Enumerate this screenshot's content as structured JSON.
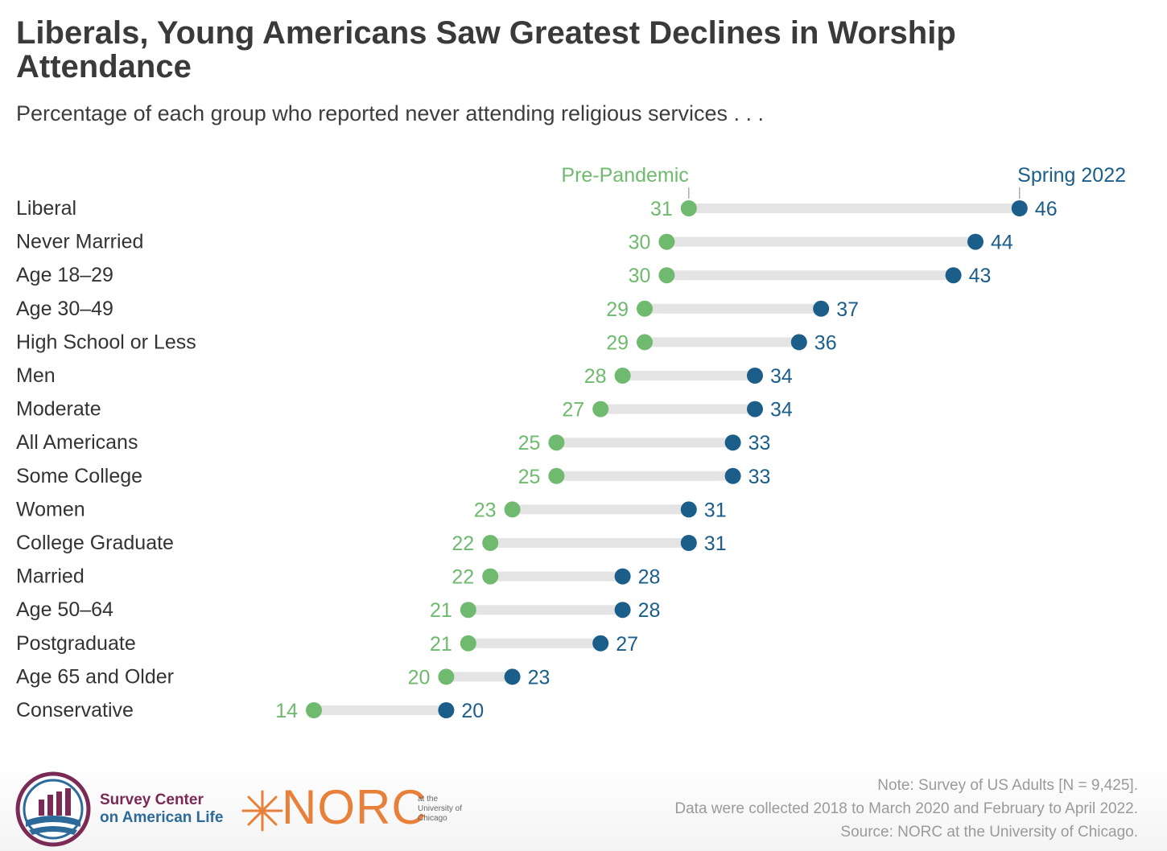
{
  "title": "Liberals, Young Americans Saw Greatest Declines in Worship Attendance",
  "subtitle": "Percentage of each group who reported never attending religious services . . .",
  "chart_data": {
    "type": "dumbbell",
    "legend": {
      "pre": "Pre-Pandemic",
      "spring": "Spring 2022"
    },
    "series": [
      {
        "name": "Pre-Pandemic",
        "color": "#6fba6f"
      },
      {
        "name": "Spring 2022",
        "color": "#1b5e8a"
      }
    ],
    "rows": [
      {
        "label": "Liberal",
        "pre": 31,
        "spring": 46
      },
      {
        "label": "Never Married",
        "pre": 30,
        "spring": 44
      },
      {
        "label": "Age 18–29",
        "pre": 30,
        "spring": 43
      },
      {
        "label": "Age 30–49",
        "pre": 29,
        "spring": 37
      },
      {
        "label": "High School or Less",
        "pre": 29,
        "spring": 36
      },
      {
        "label": "Men",
        "pre": 28,
        "spring": 34
      },
      {
        "label": "Moderate",
        "pre": 27,
        "spring": 34
      },
      {
        "label": "All Americans",
        "pre": 25,
        "spring": 33
      },
      {
        "label": "Some College",
        "pre": 25,
        "spring": 33
      },
      {
        "label": "Women",
        "pre": 23,
        "spring": 31
      },
      {
        "label": "College Graduate",
        "pre": 22,
        "spring": 31
      },
      {
        "label": "Married",
        "pre": 22,
        "spring": 28
      },
      {
        "label": "Age 50–64",
        "pre": 21,
        "spring": 28
      },
      {
        "label": "Postgraduate",
        "pre": 21,
        "spring": 27
      },
      {
        "label": "Age 65 and Older",
        "pre": 20,
        "spring": 23
      },
      {
        "label": "Conservative",
        "pre": 14,
        "spring": 20
      }
    ]
  },
  "footer": {
    "note_line1": "Note: Survey of US Adults [N = 9,425].",
    "note_line2": "Data were collected 2018 to March 2020 and February to April 2022.",
    "note_line3": "Source: NORC at the University of Chicago.",
    "logo1_line1": "Survey Center",
    "logo1_line2": "on American Life",
    "norc_word": "NORC",
    "norc_small1": "at the",
    "norc_small2": "University of",
    "norc_small3": "Chicago"
  }
}
